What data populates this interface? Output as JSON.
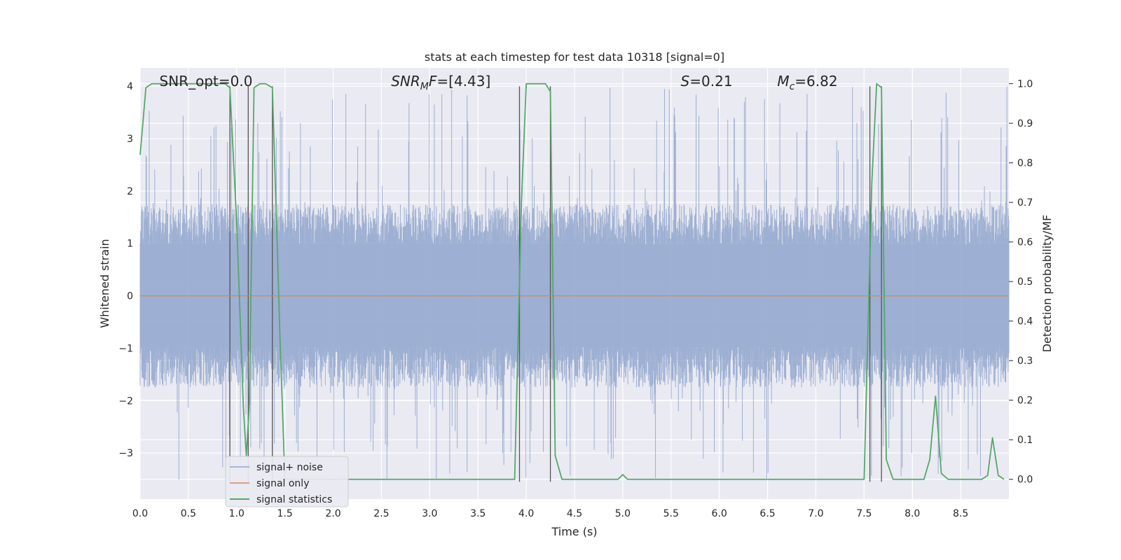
{
  "chart_data": {
    "type": "line",
    "title": "stats at each timestep for test data 10318 [signal=0]",
    "xlabel": "Time (s)",
    "ylabel": "Whitened strain",
    "y2label": "Detection probability/MF",
    "xlim": [
      0,
      9.0
    ],
    "ylim": [
      -3.88,
      4.35
    ],
    "y2lim": [
      -0.05,
      1.04
    ],
    "x_ticks": [
      0.0,
      0.5,
      1.0,
      1.5,
      2.0,
      2.5,
      3.0,
      3.5,
      4.0,
      4.5,
      5.0,
      5.5,
      6.0,
      6.5,
      7.0,
      7.5,
      8.0,
      8.5
    ],
    "y_ticks": [
      -3,
      -2,
      -1,
      0,
      1,
      2,
      3,
      4
    ],
    "y2_ticks": [
      0.0,
      0.1,
      0.2,
      0.3,
      0.4,
      0.5,
      0.6,
      0.7,
      0.8,
      0.9,
      1.0
    ],
    "grid": true,
    "legend_position": "lower-left",
    "annotations": [
      {
        "text": "SNR_opt=0.0",
        "x": 0.2,
        "y": 4.0
      },
      {
        "text": "SNR_MF=[4.43]",
        "x": 2.6,
        "y": 4.0
      },
      {
        "text": "S=0.21",
        "x": 5.6,
        "y": 4.0
      },
      {
        "text": "M_c=6.82",
        "x": 6.6,
        "y": 4.0
      }
    ],
    "series": [
      {
        "name": "signal+ noise",
        "color": "#8fa5cd",
        "kind": "noise",
        "amplitude": 1.75,
        "peak_max": 4.0,
        "peak_min": -3.55
      },
      {
        "name": "signal only",
        "color": "#dd8452",
        "values": [
          [
            0.0,
            0.0
          ],
          [
            9.0,
            0.0
          ]
        ]
      },
      {
        "name": "signal statistics",
        "color": "#55a868",
        "axis": "right",
        "values": [
          [
            0.0,
            0.82
          ],
          [
            0.06,
            0.99
          ],
          [
            0.12,
            1.0
          ],
          [
            0.88,
            1.0
          ],
          [
            0.93,
            0.99
          ],
          [
            1.0,
            0.65
          ],
          [
            1.07,
            0.18
          ],
          [
            1.1,
            0.06
          ],
          [
            1.13,
            0.18
          ],
          [
            1.18,
            0.99
          ],
          [
            1.24,
            1.0
          ],
          [
            1.3,
            1.0
          ],
          [
            1.37,
            0.99
          ],
          [
            1.45,
            0.35
          ],
          [
            1.5,
            0.0
          ],
          [
            3.88,
            0.0
          ],
          [
            3.95,
            0.7
          ],
          [
            4.0,
            1.0
          ],
          [
            4.2,
            1.0
          ],
          [
            4.25,
            0.98
          ],
          [
            4.3,
            0.06
          ],
          [
            4.37,
            0.0
          ],
          [
            4.95,
            0.0
          ],
          [
            5.0,
            0.012
          ],
          [
            5.05,
            0.0
          ],
          [
            7.5,
            0.0
          ],
          [
            7.58,
            0.75
          ],
          [
            7.63,
            1.0
          ],
          [
            7.68,
            0.99
          ],
          [
            7.73,
            0.05
          ],
          [
            7.8,
            0.0
          ],
          [
            8.12,
            0.0
          ],
          [
            8.18,
            0.05
          ],
          [
            8.24,
            0.21
          ],
          [
            8.3,
            0.015
          ],
          [
            8.37,
            0.0
          ],
          [
            8.72,
            0.0
          ],
          [
            8.78,
            0.01
          ],
          [
            8.83,
            0.105
          ],
          [
            8.89,
            0.01
          ],
          [
            8.95,
            0.0
          ]
        ]
      }
    ],
    "vertical_lines": [
      0.93,
      1.12,
      1.37,
      3.93,
      4.25,
      7.56,
      7.68
    ],
    "vertical_line_color": "#555555",
    "vertical_line_range": [
      -3.55,
      4.0
    ]
  }
}
